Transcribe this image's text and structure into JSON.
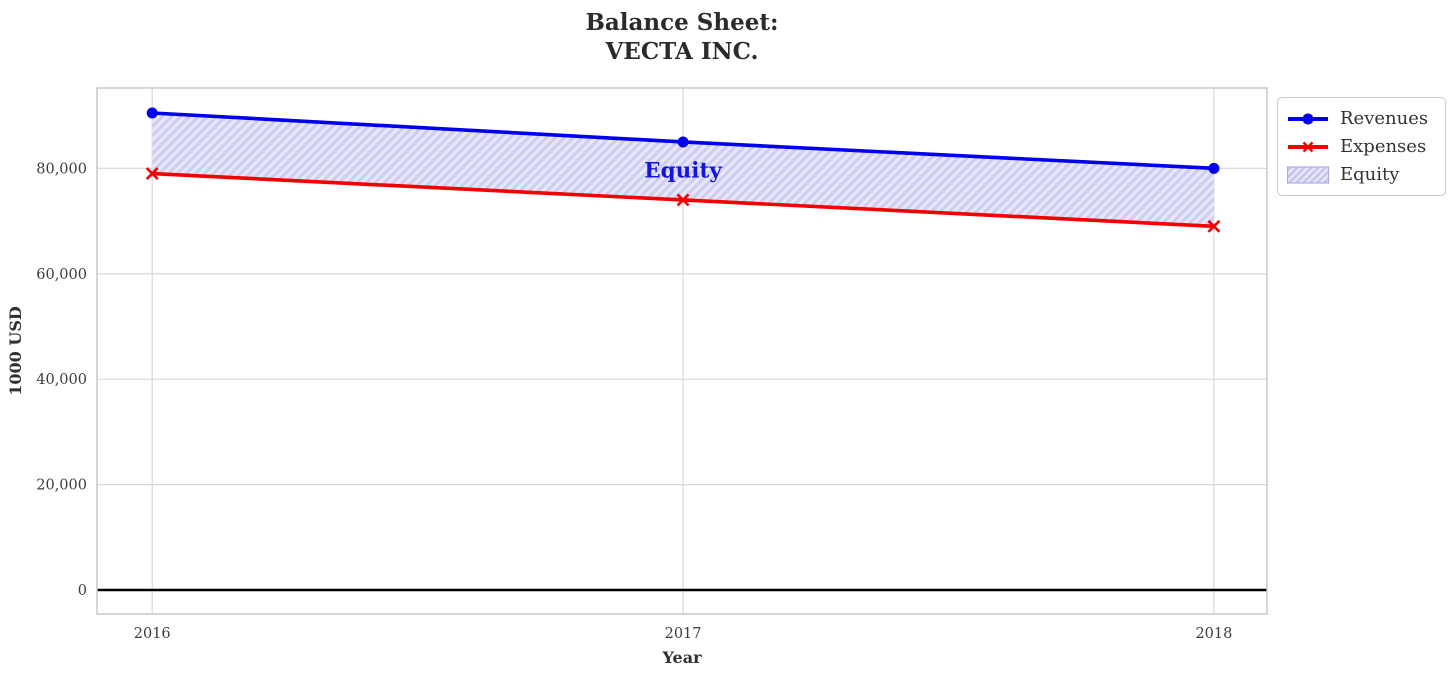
{
  "title": {
    "line1": "Balance Sheet:",
    "line2": "VECTA INC."
  },
  "legend": {
    "items": [
      {
        "label": "Revenues",
        "type": "line-circle",
        "color": "#0000ee"
      },
      {
        "label": "Expenses",
        "type": "line-x",
        "color": "#f50000"
      },
      {
        "label": "Equity",
        "type": "hatch-patch",
        "fill": "#e7e7f9",
        "hatch": "#c3c3ee",
        "edge": "#aeaee6"
      }
    ]
  },
  "chart_data": {
    "type": "line",
    "title": "Balance Sheet:\nVECTA INC.",
    "xlabel": "Year",
    "ylabel": "1000 USD",
    "x": [
      2016,
      2017,
      2018
    ],
    "xtick_labels": [
      "2016",
      "2017",
      "2018"
    ],
    "yticks": [
      0,
      20000,
      40000,
      60000,
      80000
    ],
    "ytick_labels": [
      "0",
      "20,000",
      "40,000",
      "60,000",
      "80,000"
    ],
    "xlim": [
      2015.896,
      2018.1
    ],
    "ylim": [
      -4550,
      95240
    ],
    "grid": true,
    "zero_line": true,
    "zero_line_color": "#000000",
    "grid_color": "#d8d8d8",
    "axes_edge_color": "#c8c8c8",
    "tick_label_color": "#3c3c3c",
    "series": [
      {
        "name": "Revenues",
        "color": "#0000ee",
        "marker": "circle",
        "values": [
          90500,
          85000,
          80000
        ]
      },
      {
        "name": "Expenses",
        "color": "#f50000",
        "marker": "x",
        "values": [
          79000,
          74000,
          69000
        ]
      }
    ],
    "fill_between": {
      "label": "Equity",
      "upper": "Revenues",
      "lower": "Expenses",
      "fill_color": "#e7e7f9",
      "hatch_color": "#cdcdf1",
      "equity_values": [
        11500,
        11000,
        11000
      ]
    },
    "annotation": {
      "label": "Equity",
      "x": 2017,
      "y": 79700,
      "color": "#1414dd"
    },
    "legend_position": "upper right, outside axes"
  }
}
